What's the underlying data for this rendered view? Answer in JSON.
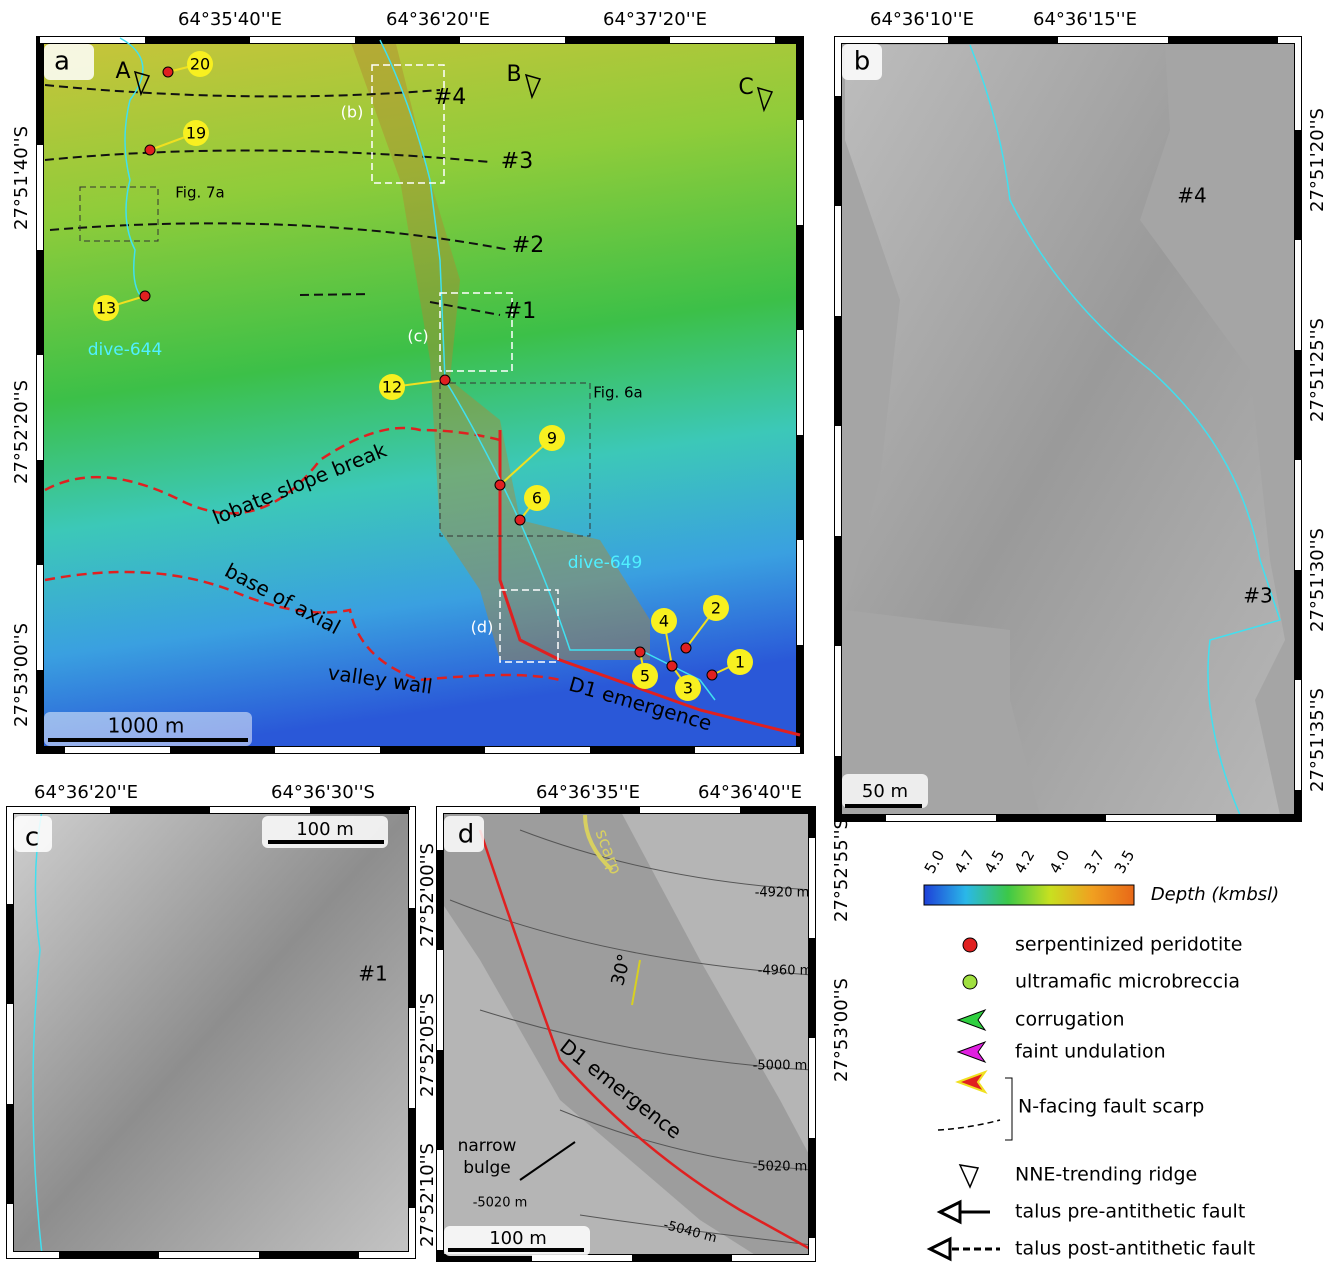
{
  "panel_a": {
    "label": "a",
    "top_ticks": [
      "64°35'40''E",
      "64°36'20''E",
      "64°37'20''E"
    ],
    "left_ticks": [
      "27°51'40''S",
      "27°52'20''S",
      "27°53'00''S"
    ],
    "ridges": [
      "A",
      "B",
      "C"
    ],
    "faults": [
      "#4",
      "#3",
      "#2",
      "#1"
    ],
    "insets": [
      "(b)",
      "(c)",
      "(d)"
    ],
    "figure_refs": [
      "Fig. 7a",
      "Fig. 6a"
    ],
    "samples": [
      "20",
      "19",
      "13",
      "12",
      "9",
      "6",
      "4",
      "2",
      "5",
      "3",
      "1"
    ],
    "dives": [
      "dive-644",
      "dive-649"
    ],
    "annotations": [
      "lobate slope break",
      "base of axial",
      "valley wall",
      "D1 emergence"
    ],
    "scale_bar": "1000 m"
  },
  "panel_b": {
    "label": "b",
    "top_ticks": [
      "64°36'10''E",
      "64°36'15''E"
    ],
    "right_ticks": [
      "27°51'20''S",
      "27°51'25''S",
      "27°51'30''S",
      "27°51'35''S"
    ],
    "faults": [
      "#4",
      "#3"
    ],
    "scale_bar": "50 m"
  },
  "panel_c": {
    "label": "c",
    "top_ticks": [
      "64°36'20''E",
      "64°36'30''S"
    ],
    "right_ticks": [
      "27°52'00''S",
      "27°52'05''S",
      "27°52'10''S"
    ],
    "faults": [
      "#1"
    ],
    "scale_bar": "100 m"
  },
  "panel_d": {
    "label": "d",
    "top_ticks": [
      "64°36'35''E",
      "64°36'40''E"
    ],
    "right_ticks": [
      "27°52'55''S",
      "27°53'00''S"
    ],
    "scarp": "scarp",
    "contours": [
      "-4920 m",
      "-4960 m",
      "-5000 m",
      "-5020 m",
      "-5020 m",
      "-5040 m"
    ],
    "dip": "30°",
    "annotation": "D1 emergence",
    "bulge": [
      "narrow",
      "bulge"
    ],
    "scale_bar": "100 m"
  },
  "legend": {
    "colorbar_ticks": [
      "5.0",
      "4.7",
      "4.5",
      "4.2",
      "4.0",
      "3.7",
      "3.5"
    ],
    "colorbar_title": "Depth (kmbsl)",
    "items": [
      "serpentinized peridotite",
      "ultramafic microbreccia",
      "corrugation",
      "faint undulation",
      "N-facing fault scarp",
      "NNE-trending ridge",
      "talus pre-antithetic fault",
      "talus post-antithetic fault"
    ]
  }
}
